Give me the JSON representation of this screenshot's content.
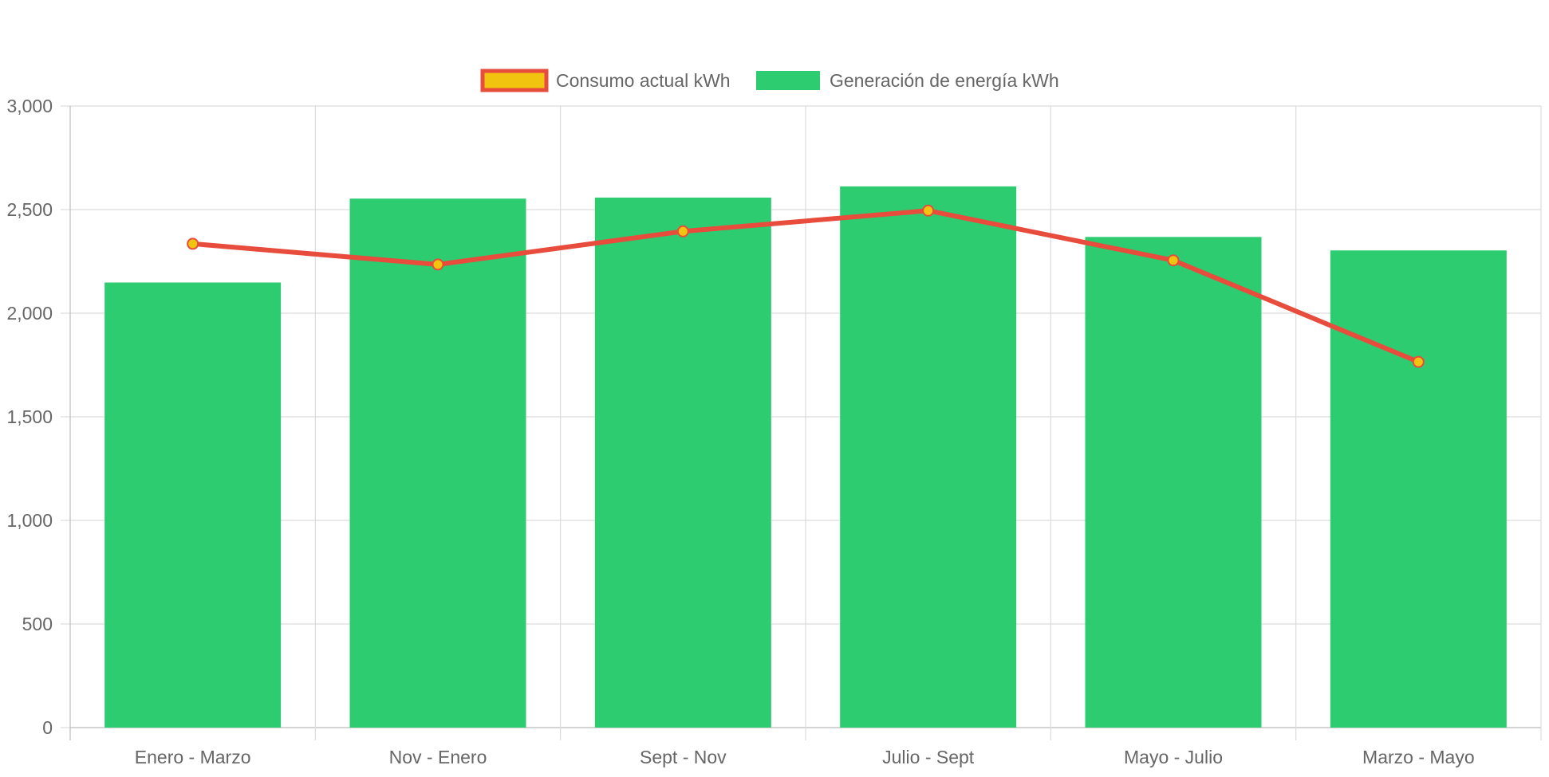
{
  "chart_data": {
    "type": "bar",
    "title": "",
    "xlabel": "",
    "ylabel": "",
    "categories": [
      "Enero - Marzo",
      "Nov - Enero",
      "Sept - Nov",
      "Julio - Sept",
      "Mayo - Julio",
      "Marzo - Mayo"
    ],
    "ylim": [
      0,
      3000
    ],
    "yticks": [
      0,
      500,
      1000,
      1500,
      2000,
      2500,
      3000
    ],
    "ytick_labels": [
      "0",
      "500",
      "1,000",
      "1,500",
      "2,000",
      "2,500",
      "3,000"
    ],
    "grid": true,
    "legend_position": "top-center",
    "series": [
      {
        "name": "Consumo actual kWh",
        "type": "line",
        "values": [
          2335,
          2235,
          2395,
          2495,
          2255,
          1765
        ],
        "line_color": "#e74c3c",
        "point_color": "#f1c40f"
      },
      {
        "name": "Generación de energía kWh",
        "type": "bar",
        "values": [
          2148,
          2553,
          2558,
          2612,
          2368,
          2303
        ],
        "color": "#2ecc71"
      }
    ]
  }
}
